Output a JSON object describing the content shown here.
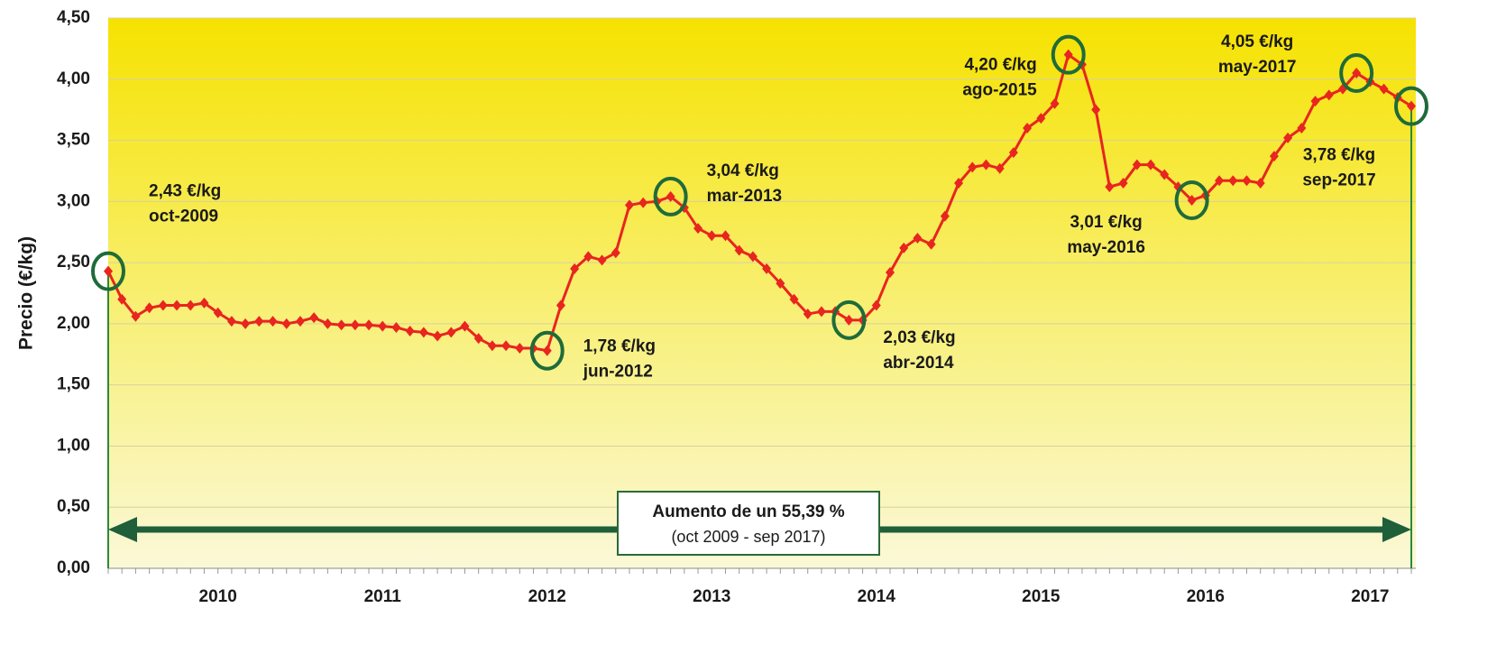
{
  "chart_data": {
    "type": "line",
    "ylabel": "Precio (€/kg)",
    "ylim": [
      0,
      4.5
    ],
    "yticks": [
      {
        "value": 0,
        "label": "0,00"
      },
      {
        "value": 0.5,
        "label": "0,50"
      },
      {
        "value": 1,
        "label": "1,00"
      },
      {
        "value": 1.5,
        "label": "1,50"
      },
      {
        "value": 2,
        "label": "2,00"
      },
      {
        "value": 2.5,
        "label": "2,50"
      },
      {
        "value": 3,
        "label": "3,00"
      },
      {
        "value": 3.5,
        "label": "3,50"
      },
      {
        "value": 4,
        "label": "4,00"
      },
      {
        "value": 4.5,
        "label": "4,50"
      }
    ],
    "grid": true,
    "categories": [
      null,
      null,
      null,
      null,
      null,
      null,
      null,
      null,
      "2010",
      null,
      null,
      null,
      null,
      null,
      null,
      null,
      null,
      null,
      null,
      null,
      "2011",
      null,
      null,
      null,
      null,
      null,
      null,
      null,
      null,
      null,
      null,
      null,
      "2012",
      null,
      null,
      null,
      null,
      null,
      null,
      null,
      null,
      null,
      null,
      null,
      "2013",
      null,
      null,
      null,
      null,
      null,
      null,
      null,
      null,
      null,
      null,
      null,
      "2014",
      null,
      null,
      null,
      null,
      null,
      null,
      null,
      null,
      null,
      null,
      null,
      "2015",
      null,
      null,
      null,
      null,
      null,
      null,
      null,
      null,
      null,
      null,
      null,
      "2016",
      null,
      null,
      null,
      null,
      null,
      null,
      null,
      null,
      null,
      null,
      null,
      "2017",
      null,
      null,
      null
    ],
    "series": [
      {
        "color": "#e8251f",
        "values": [
          2.43,
          2.2,
          2.06,
          2.13,
          2.15,
          2.15,
          2.15,
          2.17,
          2.09,
          2.02,
          2.0,
          2.02,
          2.02,
          2.0,
          2.02,
          2.05,
          2.0,
          1.99,
          1.99,
          1.99,
          1.98,
          1.97,
          1.94,
          1.93,
          1.9,
          1.93,
          1.98,
          1.88,
          1.82,
          1.82,
          1.8,
          1.8,
          1.78,
          2.15,
          2.45,
          2.55,
          2.52,
          2.58,
          2.97,
          2.99,
          3.0,
          3.04,
          2.95,
          2.78,
          2.72,
          2.72,
          2.6,
          2.55,
          2.45,
          2.33,
          2.2,
          2.08,
          2.1,
          2.1,
          2.03,
          2.03,
          2.15,
          2.42,
          2.62,
          2.7,
          2.65,
          2.88,
          3.15,
          3.28,
          3.3,
          3.27,
          3.4,
          3.6,
          3.68,
          3.8,
          4.2,
          4.12,
          3.75,
          3.12,
          3.15,
          3.3,
          3.3,
          3.22,
          3.12,
          3.01,
          3.05,
          3.17,
          3.17,
          3.17,
          3.15,
          3.37,
          3.52,
          3.6,
          3.82,
          3.87,
          3.92,
          4.05,
          3.98,
          3.92,
          3.85,
          3.78
        ],
        "value_labels": [
          "2,43 €/kg",
          null,
          null,
          null,
          null,
          null,
          null,
          null,
          null,
          null,
          null,
          null,
          null,
          null,
          null,
          null,
          null,
          null,
          null,
          null,
          null,
          null,
          null,
          null,
          null,
          null,
          null,
          null,
          null,
          null,
          null,
          null,
          "1,78 €/kg",
          null,
          null,
          null,
          null,
          null,
          null,
          null,
          null,
          "3,04 €/kg",
          null,
          null,
          null,
          null,
          null,
          null,
          null,
          null,
          null,
          null,
          null,
          null,
          "2,03 €/kg",
          null,
          null,
          null,
          null,
          null,
          null,
          null,
          null,
          null,
          null,
          null,
          null,
          null,
          null,
          null,
          "4,20 €/kg",
          null,
          null,
          null,
          null,
          null,
          null,
          null,
          null,
          "3,01 €/kg",
          null,
          null,
          null,
          null,
          null,
          null,
          null,
          null,
          null,
          null,
          null,
          "4,05 €/kg",
          null,
          null,
          null,
          "3,78 €/kg"
        ],
        "date_labels": [
          "oct-2009",
          null,
          null,
          null,
          null,
          null,
          null,
          null,
          null,
          null,
          null,
          null,
          null,
          null,
          null,
          null,
          null,
          null,
          null,
          null,
          null,
          null,
          null,
          null,
          null,
          null,
          null,
          null,
          null,
          null,
          null,
          null,
          "jun-2012",
          null,
          null,
          null,
          null,
          null,
          null,
          null,
          null,
          "mar-2013",
          null,
          null,
          null,
          null,
          null,
          null,
          null,
          null,
          null,
          null,
          null,
          null,
          "abr-2014",
          null,
          null,
          null,
          null,
          null,
          null,
          null,
          null,
          null,
          null,
          null,
          null,
          null,
          null,
          null,
          "ago-2015",
          null,
          null,
          null,
          null,
          null,
          null,
          null,
          null,
          "may-2016",
          null,
          null,
          null,
          null,
          null,
          null,
          null,
          null,
          null,
          null,
          null,
          "may-2017",
          null,
          null,
          null,
          "sep-2017"
        ]
      }
    ],
    "annotation": {
      "title": "Aumento de un 55,39 %",
      "subtitle": "(oct 2009 - sep 2017)"
    }
  }
}
